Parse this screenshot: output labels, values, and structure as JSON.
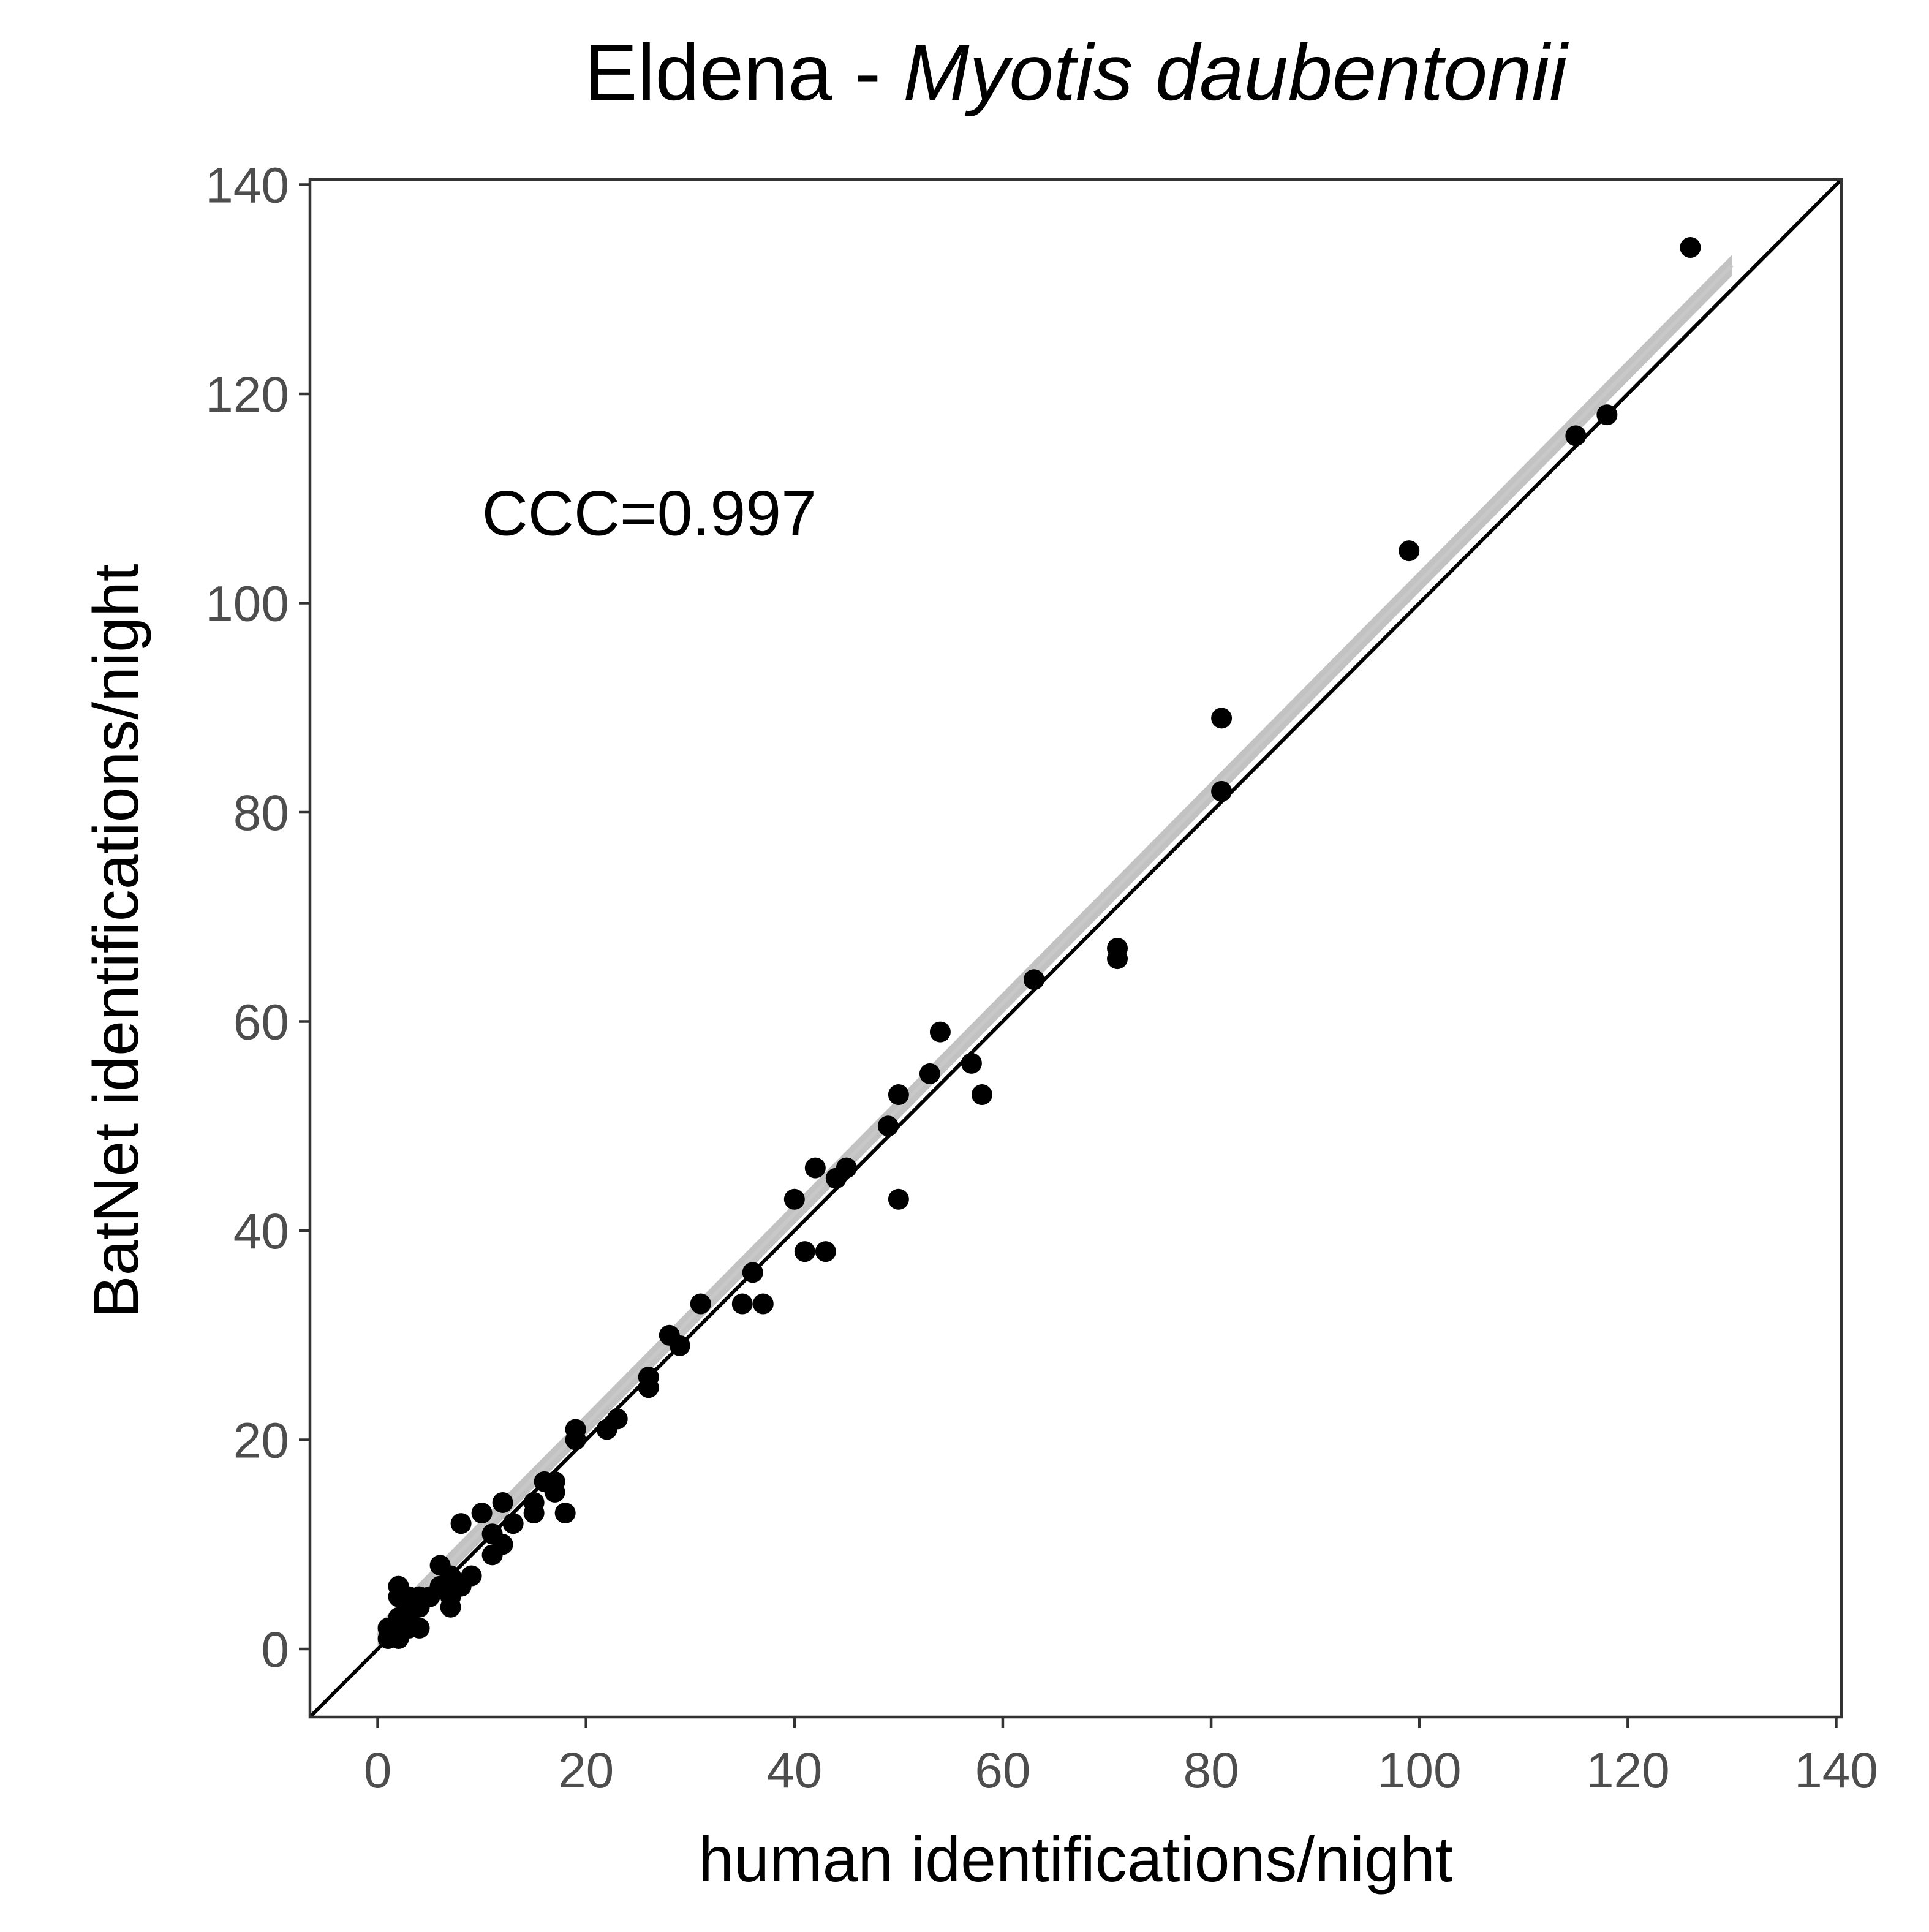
{
  "chart_data": {
    "type": "scatter",
    "title": "Eldena - ",
    "title_species": "Myotis daubentonii",
    "xlabel": "human identifications/night",
    "ylabel": "BatNet identifications/night",
    "xlim": [
      -6.5,
      140.5
    ],
    "ylim": [
      -6.5,
      140.5
    ],
    "xticks": [
      0,
      20,
      40,
      60,
      80,
      100,
      120,
      140
    ],
    "yticks": [
      0,
      20,
      40,
      60,
      80,
      100,
      120,
      140
    ],
    "xtick_labels": [
      "0",
      "20",
      "40",
      "60",
      "80",
      "100",
      "120",
      "140"
    ],
    "ytick_labels": [
      "0",
      "20",
      "40",
      "60",
      "80",
      "100",
      "120",
      "140"
    ],
    "grid": false,
    "legend": "none",
    "annotation": "CCC=0.997",
    "annotation_position": [
      10,
      106.5
    ],
    "identity_line": true,
    "fit_line": {
      "x": [
        0,
        130
      ],
      "y": [
        1.3,
        132.3
      ],
      "ribbon_halfwidth": 1.0,
      "color": "#b3b3b3"
    },
    "point_color": "#000000",
    "points": [
      {
        "x": 1,
        "y": 1
      },
      {
        "x": 1,
        "y": 2
      },
      {
        "x": 2,
        "y": 1
      },
      {
        "x": 2,
        "y": 2
      },
      {
        "x": 2,
        "y": 3
      },
      {
        "x": 2,
        "y": 5
      },
      {
        "x": 2,
        "y": 6
      },
      {
        "x": 3,
        "y": 2
      },
      {
        "x": 3,
        "y": 3
      },
      {
        "x": 3,
        "y": 4
      },
      {
        "x": 3,
        "y": 5
      },
      {
        "x": 4,
        "y": 2
      },
      {
        "x": 4,
        "y": 4
      },
      {
        "x": 4,
        "y": 5
      },
      {
        "x": 5,
        "y": 5
      },
      {
        "x": 6,
        "y": 6
      },
      {
        "x": 6,
        "y": 8
      },
      {
        "x": 7,
        "y": 4
      },
      {
        "x": 7,
        "y": 5
      },
      {
        "x": 7,
        "y": 7
      },
      {
        "x": 8,
        "y": 6
      },
      {
        "x": 8,
        "y": 12
      },
      {
        "x": 9,
        "y": 7
      },
      {
        "x": 10,
        "y": 13
      },
      {
        "x": 11,
        "y": 9
      },
      {
        "x": 11,
        "y": 11
      },
      {
        "x": 12,
        "y": 10
      },
      {
        "x": 12,
        "y": 14
      },
      {
        "x": 13,
        "y": 12
      },
      {
        "x": 15,
        "y": 13
      },
      {
        "x": 15,
        "y": 14
      },
      {
        "x": 16,
        "y": 16
      },
      {
        "x": 17,
        "y": 15
      },
      {
        "x": 17,
        "y": 16
      },
      {
        "x": 18,
        "y": 13
      },
      {
        "x": 19,
        "y": 20
      },
      {
        "x": 19,
        "y": 21
      },
      {
        "x": 22,
        "y": 21
      },
      {
        "x": 23,
        "y": 22
      },
      {
        "x": 26,
        "y": 25
      },
      {
        "x": 26,
        "y": 26
      },
      {
        "x": 28,
        "y": 30
      },
      {
        "x": 29,
        "y": 29
      },
      {
        "x": 31,
        "y": 33
      },
      {
        "x": 35,
        "y": 33
      },
      {
        "x": 36,
        "y": 36
      },
      {
        "x": 37,
        "y": 33
      },
      {
        "x": 40,
        "y": 43
      },
      {
        "x": 41,
        "y": 38
      },
      {
        "x": 42,
        "y": 46
      },
      {
        "x": 43,
        "y": 38
      },
      {
        "x": 44,
        "y": 45
      },
      {
        "x": 45,
        "y": 46
      },
      {
        "x": 49,
        "y": 50
      },
      {
        "x": 50,
        "y": 43
      },
      {
        "x": 50,
        "y": 53
      },
      {
        "x": 53,
        "y": 55
      },
      {
        "x": 54,
        "y": 59
      },
      {
        "x": 57,
        "y": 56
      },
      {
        "x": 58,
        "y": 53
      },
      {
        "x": 63,
        "y": 64
      },
      {
        "x": 71,
        "y": 66
      },
      {
        "x": 71,
        "y": 67
      },
      {
        "x": 81,
        "y": 82
      },
      {
        "x": 81,
        "y": 89
      },
      {
        "x": 99,
        "y": 105
      },
      {
        "x": 115,
        "y": 116
      },
      {
        "x": 118,
        "y": 118
      },
      {
        "x": 126,
        "y": 134
      }
    ]
  }
}
